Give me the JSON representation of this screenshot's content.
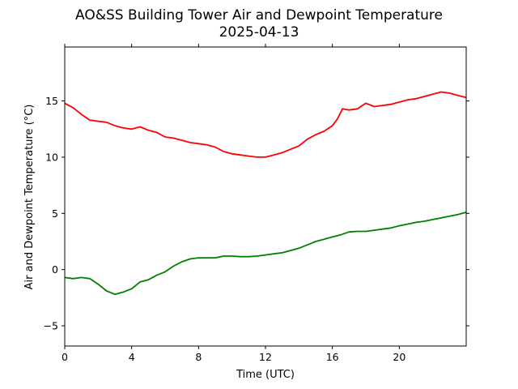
{
  "chart_data": {
    "type": "line",
    "title": "AO&SS Building Tower Air and Dewpoint Temperature",
    "subtitle": "2025-04-13",
    "xlabel": "Time (UTC)",
    "ylabel": "Air and Dewpoint Temperature (°C)",
    "xlim": [
      0,
      24
    ],
    "ylim": [
      -6.8,
      19.8
    ],
    "xticks": [
      0,
      4,
      8,
      12,
      16,
      20
    ],
    "yticks": [
      -5,
      0,
      5,
      10,
      15
    ],
    "grid": false,
    "legend": "none",
    "series": [
      {
        "color": "#ff0000",
        "x": [
          0,
          0.5,
          1,
          1.5,
          2,
          2.5,
          3,
          3.5,
          4,
          4.5,
          5,
          5.5,
          6,
          6.5,
          7,
          7.5,
          8,
          8.5,
          9,
          9.5,
          10,
          10.5,
          11,
          11.5,
          12,
          12.5,
          13,
          13.5,
          14,
          14.5,
          15,
          15.5,
          16,
          16.3,
          16.6,
          17,
          17.5,
          18,
          18.5,
          19,
          19.5,
          20,
          20.5,
          21,
          21.5,
          22,
          22.5,
          23,
          23.5,
          24
        ],
        "values": [
          14.8,
          14.4,
          13.8,
          13.3,
          13.2,
          13.1,
          12.8,
          12.6,
          12.5,
          12.7,
          12.4,
          12.2,
          11.8,
          11.7,
          11.5,
          11.3,
          11.2,
          11.1,
          10.9,
          10.5,
          10.3,
          10.2,
          10.1,
          10.0,
          10.0,
          10.2,
          10.4,
          10.7,
          11.0,
          11.6,
          12.0,
          12.3,
          12.8,
          13.4,
          14.3,
          14.2,
          14.3,
          14.8,
          14.5,
          14.6,
          14.7,
          14.9,
          15.1,
          15.2,
          15.4,
          15.6,
          15.8,
          15.7,
          15.5,
          15.3
        ]
      },
      {
        "color": "#008000",
        "x": [
          0,
          0.5,
          1,
          1.5,
          2,
          2.5,
          3,
          3.5,
          4,
          4.5,
          5,
          5.5,
          6,
          6.5,
          7,
          7.5,
          8,
          8.5,
          9,
          9.5,
          10,
          10.5,
          11,
          11.5,
          12,
          12.5,
          13,
          13.5,
          14,
          14.5,
          15,
          15.5,
          16,
          16.5,
          17,
          17.5,
          18,
          18.5,
          19,
          19.5,
          20,
          20.5,
          21,
          21.5,
          22,
          22.5,
          23,
          23.5,
          24
        ],
        "values": [
          -0.7,
          -0.8,
          -0.7,
          -0.8,
          -1.3,
          -1.9,
          -2.2,
          -2.0,
          -1.7,
          -1.1,
          -0.9,
          -0.5,
          -0.2,
          0.3,
          0.7,
          0.95,
          1.05,
          1.05,
          1.05,
          1.2,
          1.2,
          1.15,
          1.15,
          1.2,
          1.3,
          1.4,
          1.5,
          1.7,
          1.9,
          2.2,
          2.5,
          2.7,
          2.9,
          3.1,
          3.35,
          3.4,
          3.4,
          3.5,
          3.6,
          3.7,
          3.9,
          4.05,
          4.2,
          4.3,
          4.45,
          4.6,
          4.75,
          4.9,
          5.1
        ]
      }
    ]
  }
}
